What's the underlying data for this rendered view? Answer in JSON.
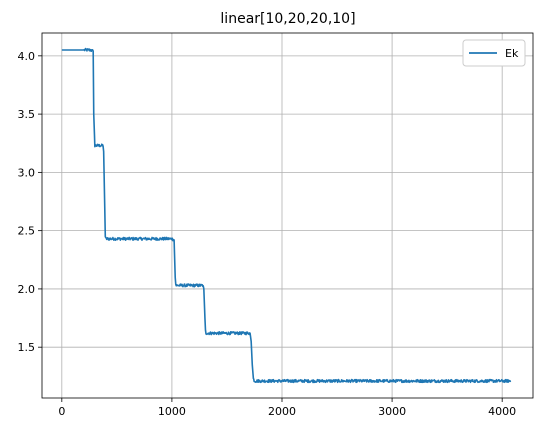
{
  "chart_data": {
    "type": "line",
    "title": "linear[10,20,20,10]",
    "xlabel": "",
    "ylabel": "",
    "xlim": [
      -180,
      4280
    ],
    "ylim": [
      1.064,
      4.196
    ],
    "xticks": [
      0,
      1000,
      2000,
      3000,
      4000
    ],
    "xtick_labels": [
      "0",
      "1000",
      "2000",
      "3000",
      "4000"
    ],
    "yticks": [
      1.5,
      2.0,
      2.5,
      3.0,
      3.5,
      4.0
    ],
    "ytick_labels": [
      "1.5",
      "2.0",
      "2.5",
      "3.0",
      "3.5",
      "4.0"
    ],
    "grid": true,
    "legend_position": "top-right",
    "series": [
      {
        "name": "Ek",
        "color": "#1f77b4",
        "noise": 0.012,
        "x": [
          0,
          260,
          285,
          290,
          300,
          375,
          380,
          390,
          395,
          400,
          1000,
          1020,
          1030,
          1035,
          1040,
          1280,
          1290,
          1300,
          1305,
          1310,
          1710,
          1720,
          1730,
          1740,
          1750,
          4080
        ],
        "y": [
          4.05,
          4.05,
          4.04,
          3.5,
          3.23,
          3.23,
          3.18,
          2.7,
          2.45,
          2.43,
          2.43,
          2.42,
          2.1,
          2.04,
          2.03,
          2.03,
          2.0,
          1.75,
          1.64,
          1.62,
          1.62,
          1.55,
          1.35,
          1.23,
          1.21,
          1.21
        ]
      }
    ]
  }
}
